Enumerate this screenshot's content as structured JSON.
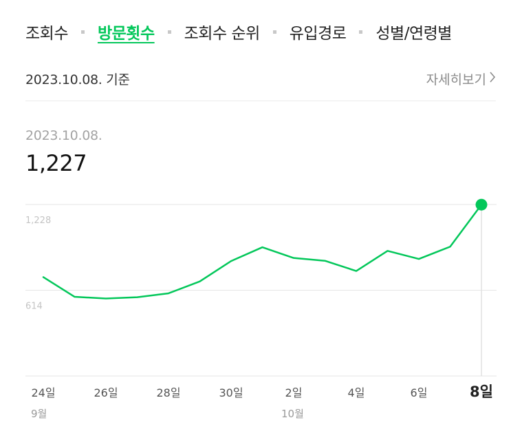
{
  "tabs": [
    {
      "label": "조회수",
      "active": false
    },
    {
      "label": "방문횟수",
      "active": true
    },
    {
      "label": "조회수 순위",
      "active": false
    },
    {
      "label": "유입경로",
      "active": false
    },
    {
      "label": "성별/연령별",
      "active": false
    }
  ],
  "header": {
    "basis_date": "2023.10.08. 기준",
    "detail_link": "자세히보기"
  },
  "selected": {
    "date": "2023.10.08.",
    "value": "1,227"
  },
  "colors": {
    "accent": "#03c75a",
    "grid": "#e6e6e6",
    "tick_muted": "#c4c4c4"
  },
  "chart_data": {
    "type": "line",
    "x": [
      "9/24",
      "9/25",
      "9/26",
      "9/27",
      "9/28",
      "9/29",
      "9/30",
      "10/1",
      "10/2",
      "10/3",
      "10/4",
      "10/5",
      "10/6",
      "10/7",
      "10/8"
    ],
    "values": [
      708,
      567,
      555,
      564,
      592,
      677,
      823,
      922,
      845,
      825,
      752,
      896,
      838,
      926,
      1227
    ],
    "ylim": [
      0,
      1228
    ],
    "yticks": [
      {
        "value": 1228,
        "label": "1,228"
      },
      {
        "value": 614,
        "label": "614"
      }
    ],
    "xticks": [
      {
        "index": 0,
        "label": "24일",
        "month": "9월",
        "bold": false
      },
      {
        "index": 2,
        "label": "26일",
        "bold": false
      },
      {
        "index": 4,
        "label": "28일",
        "bold": false
      },
      {
        "index": 6,
        "label": "30일",
        "bold": false
      },
      {
        "index": 8,
        "label": "2일",
        "month": "10월",
        "bold": false
      },
      {
        "index": 10,
        "label": "4일",
        "bold": false
      },
      {
        "index": 12,
        "label": "6일",
        "bold": false
      },
      {
        "index": 14,
        "label": "8일",
        "bold": true
      }
    ],
    "highlight_index": 14,
    "grid": true,
    "legend": "none"
  }
}
